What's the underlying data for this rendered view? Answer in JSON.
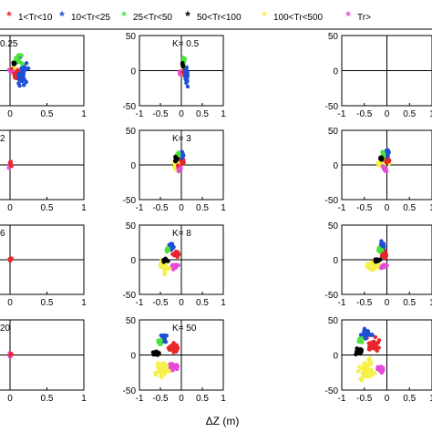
{
  "colors": {
    "red": "#e8262b",
    "blue": "#1f4fd6",
    "green": "#4be33c",
    "black": "#000000",
    "yellow": "#f6f14a",
    "magenta": "#e64bd8"
  },
  "legend": {
    "placement": "top",
    "entries": [
      {
        "label": "1<Tr<10",
        "color": "red"
      },
      {
        "label": "10<Tr<25",
        "color": "blue"
      },
      {
        "label": "25<Tr<50",
        "color": "green"
      },
      {
        "label": "50<Tr<100",
        "color": "black"
      },
      {
        "label": "100<Tr<500",
        "color": "yellow"
      },
      {
        "label": "Tr>",
        "color": "magenta"
      }
    ]
  },
  "chart_data": {
    "type": "scatter",
    "layout": "grid 4x3",
    "xlabel": "ΔZ (m)",
    "xlim": [
      -1,
      1
    ],
    "ylim": [
      -50,
      50
    ],
    "x_ticks": [
      "-1",
      "-0.5",
      "0",
      "0.5",
      "1"
    ],
    "y_ticks": [
      "50",
      "0",
      "-50"
    ],
    "first_column_x_ticks": [
      "0",
      "0.5",
      "1"
    ],
    "panels": [
      {
        "label": "0.25",
        "clusters": [
          {
            "color": "yellow",
            "x": 0.05,
            "y": 2,
            "sx": 0.05,
            "sy": 5,
            "n": 20
          },
          {
            "color": "magenta",
            "x": 0.02,
            "y": -2,
            "sx": 0.03,
            "sy": 3,
            "n": 8
          },
          {
            "color": "red",
            "x": 0.08,
            "y": -6,
            "sx": 0.05,
            "sy": 5,
            "n": 18
          },
          {
            "color": "blue",
            "x": 0.16,
            "y": -8,
            "sx": 0.06,
            "sy": 14,
            "n": 40
          },
          {
            "color": "green",
            "x": 0.1,
            "y": 15,
            "sx": 0.05,
            "sy": 6,
            "n": 22
          },
          {
            "color": "black",
            "x": 0.05,
            "y": 10,
            "sx": 0.02,
            "sy": 2,
            "n": 6
          }
        ]
      },
      {
        "label": "K= 0.5",
        "clusters": [
          {
            "color": "yellow",
            "x": 0.04,
            "y": 0,
            "sx": 0.04,
            "sy": 5,
            "n": 18
          },
          {
            "color": "magenta",
            "x": -0.03,
            "y": -2,
            "sx": 0.02,
            "sy": 3,
            "n": 8
          },
          {
            "color": "red",
            "x": 0.08,
            "y": -3,
            "sx": 0.03,
            "sy": 4,
            "n": 14
          },
          {
            "color": "blue",
            "x": 0.12,
            "y": -7,
            "sx": 0.03,
            "sy": 11,
            "n": 32
          },
          {
            "color": "green",
            "x": 0.06,
            "y": 13,
            "sx": 0.03,
            "sy": 5,
            "n": 14
          },
          {
            "color": "black",
            "x": 0.03,
            "y": 8,
            "sx": 0.01,
            "sy": 2,
            "n": 5
          }
        ]
      },
      {
        "label": "",
        "clusters": []
      },
      {
        "label": "2",
        "clusters": [
          {
            "color": "magenta",
            "x": 0.0,
            "y": 0,
            "sx": 0.01,
            "sy": 2,
            "n": 10
          },
          {
            "color": "red",
            "x": 0.01,
            "y": 1,
            "sx": 0.01,
            "sy": 2,
            "n": 6
          }
        ]
      },
      {
        "label": "K= 3",
        "clusters": [
          {
            "color": "yellow",
            "x": -0.1,
            "y": 2,
            "sx": 0.08,
            "sy": 7,
            "n": 28
          },
          {
            "color": "magenta",
            "x": -0.05,
            "y": -5,
            "sx": 0.04,
            "sy": 3,
            "n": 10
          },
          {
            "color": "red",
            "x": 0.02,
            "y": 5,
            "sx": 0.04,
            "sy": 4,
            "n": 16
          },
          {
            "color": "blue",
            "x": 0.02,
            "y": 16,
            "sx": 0.03,
            "sy": 4,
            "n": 16
          },
          {
            "color": "green",
            "x": -0.08,
            "y": 15,
            "sx": 0.03,
            "sy": 3,
            "n": 10
          },
          {
            "color": "black",
            "x": -0.13,
            "y": 8,
            "sx": 0.03,
            "sy": 3,
            "n": 14
          }
        ]
      },
      {
        "label": "",
        "clusters": [
          {
            "color": "yellow",
            "x": -0.1,
            "y": 3,
            "sx": 0.08,
            "sy": 7,
            "n": 28
          },
          {
            "color": "magenta",
            "x": -0.05,
            "y": -6,
            "sx": 0.04,
            "sy": 3,
            "n": 10
          },
          {
            "color": "red",
            "x": 0.02,
            "y": 6,
            "sx": 0.04,
            "sy": 4,
            "n": 16
          },
          {
            "color": "blue",
            "x": 0.02,
            "y": 17,
            "sx": 0.03,
            "sy": 4,
            "n": 16
          },
          {
            "color": "green",
            "x": -0.08,
            "y": 16,
            "sx": 0.03,
            "sy": 3,
            "n": 10
          },
          {
            "color": "black",
            "x": -0.13,
            "y": 9,
            "sx": 0.03,
            "sy": 3,
            "n": 14
          }
        ]
      },
      {
        "label": "6",
        "clusters": [
          {
            "color": "magenta",
            "x": 0.0,
            "y": 0,
            "sx": 0.01,
            "sy": 2,
            "n": 10
          },
          {
            "color": "red",
            "x": 0.01,
            "y": 1,
            "sx": 0.01,
            "sy": 2,
            "n": 6
          }
        ]
      },
      {
        "label": "K= 8",
        "clusters": [
          {
            "color": "yellow",
            "x": -0.4,
            "y": -10,
            "sx": 0.1,
            "sy": 6,
            "n": 36
          },
          {
            "color": "magenta",
            "x": -0.15,
            "y": -10,
            "sx": 0.07,
            "sy": 3,
            "n": 18
          },
          {
            "color": "red",
            "x": -0.12,
            "y": 8,
            "sx": 0.06,
            "sy": 4,
            "n": 22
          },
          {
            "color": "blue",
            "x": -0.25,
            "y": 20,
            "sx": 0.05,
            "sy": 4,
            "n": 22
          },
          {
            "color": "green",
            "x": -0.33,
            "y": 15,
            "sx": 0.03,
            "sy": 3,
            "n": 12
          },
          {
            "color": "black",
            "x": -0.38,
            "y": 0,
            "sx": 0.05,
            "sy": 2,
            "n": 20
          }
        ]
      },
      {
        "label": "",
        "clusters": [
          {
            "color": "yellow",
            "x": -0.3,
            "y": -8,
            "sx": 0.1,
            "sy": 6,
            "n": 32
          },
          {
            "color": "magenta",
            "x": -0.08,
            "y": -10,
            "sx": 0.05,
            "sy": 3,
            "n": 14
          },
          {
            "color": "red",
            "x": -0.05,
            "y": 8,
            "sx": 0.05,
            "sy": 4,
            "n": 18
          },
          {
            "color": "blue",
            "x": -0.1,
            "y": 20,
            "sx": 0.04,
            "sy": 4,
            "n": 18
          },
          {
            "color": "green",
            "x": -0.15,
            "y": 14,
            "sx": 0.03,
            "sy": 3,
            "n": 10
          },
          {
            "color": "black",
            "x": -0.22,
            "y": 0,
            "sx": 0.05,
            "sy": 2,
            "n": 18
          }
        ]
      },
      {
        "label": "20",
        "clusters": [
          {
            "color": "magenta",
            "x": 0.0,
            "y": 0,
            "sx": 0.01,
            "sy": 2,
            "n": 10
          },
          {
            "color": "red",
            "x": 0.01,
            "y": 1,
            "sx": 0.01,
            "sy": 2,
            "n": 6
          }
        ]
      },
      {
        "label": "K= 50",
        "clusters": [
          {
            "color": "yellow",
            "x": -0.45,
            "y": -20,
            "sx": 0.12,
            "sy": 9,
            "n": 48
          },
          {
            "color": "magenta",
            "x": -0.18,
            "y": -17,
            "sx": 0.08,
            "sy": 4,
            "n": 22
          },
          {
            "color": "red",
            "x": -0.2,
            "y": 10,
            "sx": 0.09,
            "sy": 6,
            "n": 30
          },
          {
            "color": "blue",
            "x": -0.42,
            "y": 25,
            "sx": 0.05,
            "sy": 4,
            "n": 22
          },
          {
            "color": "green",
            "x": -0.52,
            "y": 18,
            "sx": 0.03,
            "sy": 3,
            "n": 12
          },
          {
            "color": "black",
            "x": -0.58,
            "y": 2,
            "sx": 0.07,
            "sy": 3,
            "n": 22
          }
        ]
      },
      {
        "label": "",
        "clusters": [
          {
            "color": "yellow",
            "x": -0.45,
            "y": -22,
            "sx": 0.14,
            "sy": 10,
            "n": 56
          },
          {
            "color": "magenta",
            "x": -0.15,
            "y": -20,
            "sx": 0.08,
            "sy": 4,
            "n": 22
          },
          {
            "color": "red",
            "x": -0.3,
            "y": 14,
            "sx": 0.12,
            "sy": 7,
            "n": 34
          },
          {
            "color": "blue",
            "x": -0.45,
            "y": 30,
            "sx": 0.12,
            "sy": 4,
            "n": 30
          },
          {
            "color": "green",
            "x": -0.6,
            "y": 20,
            "sx": 0.04,
            "sy": 3,
            "n": 12
          },
          {
            "color": "black",
            "x": -0.62,
            "y": 5,
            "sx": 0.07,
            "sy": 3,
            "n": 24
          }
        ]
      }
    ]
  }
}
